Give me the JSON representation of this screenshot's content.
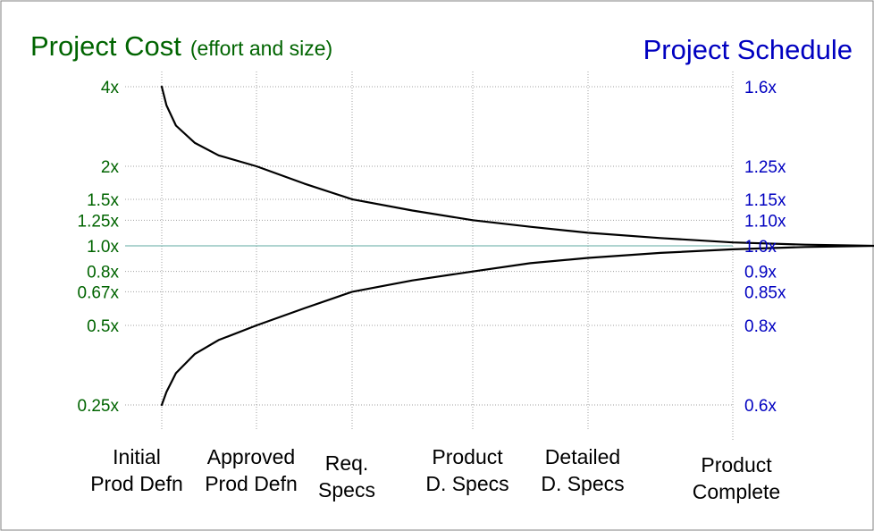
{
  "colors": {
    "cost": "#006400",
    "schedule": "#0000c0",
    "curve": "#000000",
    "grid": "#a0a0a0",
    "center_line": "#5fa8a0",
    "frame": "#808080"
  },
  "titles": {
    "cost_main": "Project Cost",
    "cost_sub": "(effort and size)",
    "schedule": "Project Schedule"
  },
  "chart_data": {
    "type": "line",
    "y_scale": "log",
    "y_range": [
      0.25,
      4
    ],
    "grid": true,
    "x_stages": [
      {
        "lines": [
          "Initial",
          "Prod Defn"
        ]
      },
      {
        "lines": [
          "Approved",
          "Prod Defn"
        ]
      },
      {
        "lines": [
          "Req.",
          "Specs"
        ]
      },
      {
        "lines": [
          "Product",
          "D. Specs"
        ]
      },
      {
        "lines": [
          "Detailed",
          "D. Specs"
        ]
      },
      {
        "lines": [
          "Product",
          "Complete"
        ]
      }
    ],
    "y_ticks_cost": [
      {
        "value": 4,
        "label": "4x"
      },
      {
        "value": 2,
        "label": "2x"
      },
      {
        "value": 1.5,
        "label": "1.5x"
      },
      {
        "value": 1.25,
        "label": "1.25x"
      },
      {
        "value": 1.0,
        "label": "1.0x"
      },
      {
        "value": 0.8,
        "label": "0.8x"
      },
      {
        "value": 0.67,
        "label": "0.67x"
      },
      {
        "value": 0.5,
        "label": "0.5x"
      },
      {
        "value": 0.25,
        "label": "0.25x"
      }
    ],
    "y_ticks_schedule_labels": [
      "1.6x",
      "1.25x",
      "1.15x",
      "1.10x",
      "1.0x",
      "0.9x",
      "0.85x",
      "0.8x",
      "0.6x"
    ],
    "upper_curve": [
      [
        0.0,
        4.0
      ],
      [
        0.05,
        3.4
      ],
      [
        0.15,
        2.85
      ],
      [
        0.35,
        2.45
      ],
      [
        0.6,
        2.2
      ],
      [
        1.0,
        2.0
      ],
      [
        1.5,
        1.72
      ],
      [
        2.0,
        1.5
      ],
      [
        2.5,
        1.36
      ],
      [
        3.0,
        1.25
      ],
      [
        3.5,
        1.18
      ],
      [
        4.0,
        1.12
      ],
      [
        4.5,
        1.07
      ],
      [
        5.0,
        1.03
      ],
      [
        5.5,
        1.01
      ],
      [
        6.0,
        1.0
      ]
    ],
    "lower_curve": [
      [
        0.0,
        0.25
      ],
      [
        0.05,
        0.28
      ],
      [
        0.15,
        0.33
      ],
      [
        0.35,
        0.39
      ],
      [
        0.6,
        0.44
      ],
      [
        1.0,
        0.5
      ],
      [
        1.5,
        0.58
      ],
      [
        2.0,
        0.67
      ],
      [
        2.5,
        0.74
      ],
      [
        3.0,
        0.8
      ],
      [
        3.5,
        0.86
      ],
      [
        4.0,
        0.9
      ],
      [
        4.5,
        0.94
      ],
      [
        5.0,
        0.97
      ],
      [
        5.5,
        0.99
      ],
      [
        6.0,
        1.0
      ]
    ]
  }
}
